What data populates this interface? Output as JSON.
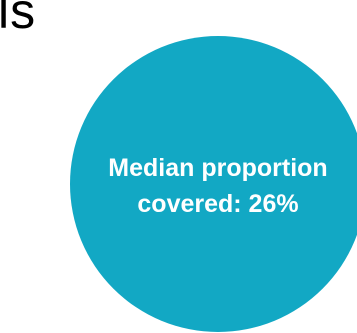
{
  "fragment_text": "ls",
  "circle": {
    "line1": "Median proportion",
    "line2": "covered: 26%",
    "fill_color": "#12a8c4",
    "text_color": "#ffffff"
  }
}
